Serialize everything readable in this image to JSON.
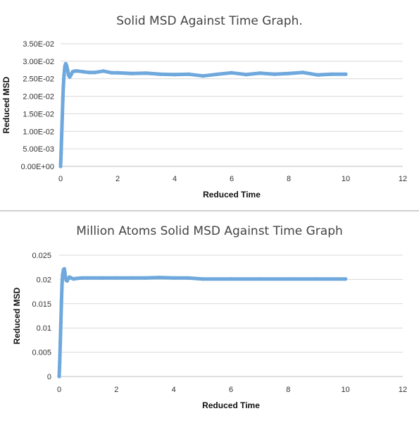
{
  "colors": {
    "series": "#6fa8dc",
    "grid": "#d9d9d9",
    "axis": "#bfbfbf"
  },
  "chart_data": [
    {
      "type": "scatter",
      "title": "Solid MSD Against Time Graph.",
      "xlabel": "Reduced Time",
      "ylabel": "Reduced MSD",
      "xlim": [
        0,
        12
      ],
      "ylim": [
        0,
        0.035
      ],
      "x_ticks": [
        0,
        2,
        4,
        6,
        8,
        10,
        12
      ],
      "x_tick_labels": [
        "0",
        "2",
        "4",
        "6",
        "8",
        "10",
        "12"
      ],
      "y_ticks": [
        0,
        0.005,
        0.01,
        0.015,
        0.02,
        0.025,
        0.03,
        0.035
      ],
      "y_tick_labels": [
        "0.00E+00",
        "5.00E-03",
        "1.00E-02",
        "1.50E-02",
        "2.00E-02",
        "2.50E-02",
        "3.00E-02",
        "3.50E-02"
      ],
      "grid": "horizontal",
      "legend": "none",
      "series": [
        {
          "x": [
            0,
            0.02,
            0.04,
            0.06,
            0.08,
            0.1,
            0.12,
            0.15,
            0.18,
            0.2,
            0.22,
            0.25,
            0.28,
            0.32,
            0.36,
            0.42,
            0.5,
            0.6,
            0.8,
            1,
            1.2,
            1.5,
            1.8,
            2,
            2.5,
            3,
            3.5,
            4,
            4.5,
            5,
            5.5,
            6,
            6.5,
            7,
            7.5,
            8,
            8.5,
            9,
            9.5,
            10
          ],
          "y": [
            0,
            0.004,
            0.009,
            0.014,
            0.019,
            0.023,
            0.026,
            0.0285,
            0.0293,
            0.029,
            0.0285,
            0.0275,
            0.026,
            0.0255,
            0.026,
            0.027,
            0.0272,
            0.0272,
            0.027,
            0.0268,
            0.0268,
            0.0272,
            0.0267,
            0.0267,
            0.0265,
            0.0266,
            0.0263,
            0.0262,
            0.0263,
            0.0258,
            0.0263,
            0.0267,
            0.0262,
            0.0266,
            0.0263,
            0.0265,
            0.0268,
            0.0261,
            0.0263,
            0.0263
          ]
        }
      ]
    },
    {
      "type": "scatter",
      "title": "Million Atoms Solid MSD Against Time Graph",
      "xlabel": "Reduced Time",
      "ylabel": "Reduced MSD",
      "xlim": [
        0,
        12
      ],
      "ylim": [
        0,
        0.025
      ],
      "x_ticks": [
        0,
        2,
        4,
        6,
        8,
        10,
        12
      ],
      "x_tick_labels": [
        "0",
        "2",
        "4",
        "6",
        "8",
        "10",
        "12"
      ],
      "y_ticks": [
        0,
        0.005,
        0.01,
        0.015,
        0.02,
        0.025
      ],
      "y_tick_labels": [
        "0",
        "0.005",
        "0.01",
        "0.015",
        "0.02",
        "0.025"
      ],
      "grid": "horizontal",
      "legend": "none",
      "series": [
        {
          "x": [
            0,
            0.02,
            0.04,
            0.06,
            0.08,
            0.1,
            0.12,
            0.15,
            0.18,
            0.2,
            0.22,
            0.25,
            0.28,
            0.32,
            0.36,
            0.42,
            0.5,
            0.6,
            0.8,
            1,
            1.5,
            2,
            2.5,
            3,
            3.5,
            4,
            4.5,
            5,
            6,
            7,
            8,
            9,
            10
          ],
          "y": [
            0,
            0.003,
            0.007,
            0.011,
            0.0155,
            0.019,
            0.021,
            0.022,
            0.0222,
            0.0215,
            0.0205,
            0.0198,
            0.0197,
            0.0202,
            0.0205,
            0.0203,
            0.0201,
            0.0202,
            0.0203,
            0.0203,
            0.0203,
            0.0203,
            0.0203,
            0.0203,
            0.0204,
            0.0203,
            0.0203,
            0.0201,
            0.0201,
            0.0201,
            0.0201,
            0.0201,
            0.0201
          ]
        }
      ]
    }
  ]
}
